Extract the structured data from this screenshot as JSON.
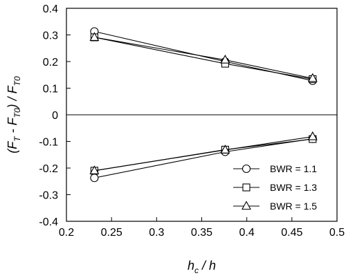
{
  "chart_data": {
    "type": "line",
    "xlim": [
      0.2,
      0.5
    ],
    "ylim": [
      -0.4,
      0.4
    ],
    "xticks": [
      0.2,
      0.25,
      0.3,
      0.35,
      0.4,
      0.45,
      0.5
    ],
    "yticks": [
      -0.4,
      -0.3,
      -0.2,
      -0.1,
      0,
      0.1,
      0.2,
      0.3,
      0.4
    ],
    "xtick_labels": [
      "0.2",
      "0.25",
      "0.3",
      "0.35",
      "0.4",
      "0.45",
      "0.5"
    ],
    "ytick_labels": [
      "-0.4",
      "-0.3",
      "-0.2",
      "-0.1",
      "0",
      "0.1",
      "0.2",
      "0.3",
      "0.4"
    ],
    "zero_line": true,
    "grid": false,
    "legend_position": "bottom-right",
    "xlabel": {
      "parts": [
        {
          "t": "h",
          "sub": false
        },
        {
          "t": "c",
          "sub": true
        },
        {
          "t": " / h",
          "sub": false
        }
      ]
    },
    "ylabel": {
      "parts": [
        {
          "t": "(F",
          "sub": false
        },
        {
          "t": "T",
          "sub": true
        },
        {
          "t": " - F",
          "sub": false
        },
        {
          "t": "T0",
          "sub": true
        },
        {
          "t": ") / F",
          "sub": false
        },
        {
          "t": "T0",
          "sub": true
        }
      ]
    },
    "series": [
      {
        "name": "BWR = 1.1",
        "marker": "circle",
        "upper": {
          "x": [
            0.231,
            0.376,
            0.473
          ],
          "y": [
            0.313,
            0.2,
            0.128
          ]
        },
        "lower": {
          "x": [
            0.231,
            0.376,
            0.473
          ],
          "y": [
            -0.237,
            -0.139,
            -0.09
          ]
        }
      },
      {
        "name": "BWR = 1.3",
        "marker": "square",
        "upper": {
          "x": [
            0.231,
            0.376,
            0.473
          ],
          "y": [
            0.291,
            0.192,
            0.134
          ]
        },
        "lower": {
          "x": [
            0.231,
            0.376,
            0.473
          ],
          "y": [
            -0.21,
            -0.131,
            -0.091
          ]
        }
      },
      {
        "name": "BWR = 1.5",
        "marker": "triangle",
        "upper": {
          "x": [
            0.231,
            0.376,
            0.473
          ],
          "y": [
            0.291,
            0.206,
            0.137
          ]
        },
        "lower": {
          "x": [
            0.231,
            0.376,
            0.473
          ],
          "y": [
            -0.21,
            -0.132,
            -0.082
          ]
        }
      }
    ]
  }
}
